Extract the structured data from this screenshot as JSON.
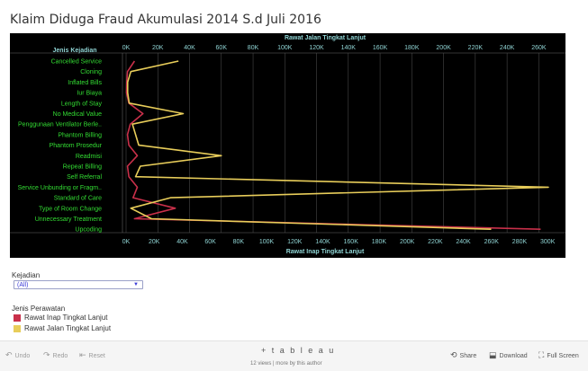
{
  "title": "Klaim Diduga Fraud Akumulasi 2014 S.d Juli 2016",
  "chart_data": {
    "type": "line",
    "row_header": "Jenis Kejadian",
    "categories": [
      "Cancelled Service",
      "Cloning",
      "Inflated Bills",
      "Iur Biaya",
      "Length of Stay",
      "No Medical Value",
      "Penggunaan Ventilator Berle..",
      "Phantom Billing",
      "Phantom Prosedur",
      "Readmisi",
      "Repeat Billing",
      "Self Referral",
      "Service Unbunding or Fragm..",
      "Standard of Care",
      "Type of Room Change",
      "Unnecessary Treatment",
      "Upcoding"
    ],
    "top_axis": {
      "label": "Rawat Jalan Tingkat Lanjut",
      "range": [
        0,
        270000
      ],
      "ticks": [
        0,
        20000,
        40000,
        60000,
        80000,
        100000,
        120000,
        140000,
        160000,
        180000,
        200000,
        220000,
        240000,
        260000
      ],
      "tick_labels": [
        "0K",
        "20K",
        "40K",
        "60K",
        "80K",
        "100K",
        "120K",
        "140K",
        "160K",
        "180K",
        "200K",
        "220K",
        "240K",
        "260K"
      ]
    },
    "bottom_axis": {
      "label": "Rawat Inap Tingkat Lanjut",
      "range": [
        0,
        305000
      ],
      "ticks": [
        0,
        20000,
        40000,
        60000,
        80000,
        100000,
        120000,
        140000,
        160000,
        180000,
        200000,
        220000,
        240000,
        260000,
        280000,
        300000
      ],
      "tick_labels": [
        "0K",
        "20K",
        "40K",
        "60K",
        "80K",
        "100K",
        "120K",
        "140K",
        "160K",
        "180K",
        "200K",
        "220K",
        "240K",
        "260K",
        "280K",
        "300K"
      ]
    },
    "series": [
      {
        "name": "Rawat Inap Tingkat Lanjut",
        "axis": "bottom",
        "color": "#c9304a",
        "values": [
          6000,
          1000,
          500,
          300,
          2000,
          12000,
          3000,
          1000,
          2000,
          8000,
          1000,
          2000,
          8000,
          5000,
          35000,
          6000,
          295000
        ]
      },
      {
        "name": "Rawat Jalan Tingkat Lanjut",
        "axis": "top",
        "color": "#e8cd5a",
        "values": [
          33000,
          3000,
          1000,
          1000,
          2000,
          36000,
          4000,
          6000,
          8000,
          60000,
          9000,
          6000,
          266000,
          28000,
          3000,
          16000,
          230000
        ]
      }
    ],
    "grid": true,
    "background": "#000000"
  },
  "filter": {
    "label": "Kejadian",
    "value": "(All)"
  },
  "legend": {
    "title": "Jenis Perawatan",
    "items": [
      {
        "label": "Rawat Inap Tingkat Lanjut",
        "color": "#c9304a"
      },
      {
        "label": "Rawat Jalan Tingkat Lanjut",
        "color": "#e8cd5a"
      }
    ]
  },
  "toolbar": {
    "undo": "Undo",
    "redo": "Redo",
    "revert": "Reset",
    "logo": "+ t a b l e a u",
    "views": "12 views | more by this author",
    "share": "Share",
    "download": "Download",
    "fullscreen": "Full Screen"
  }
}
